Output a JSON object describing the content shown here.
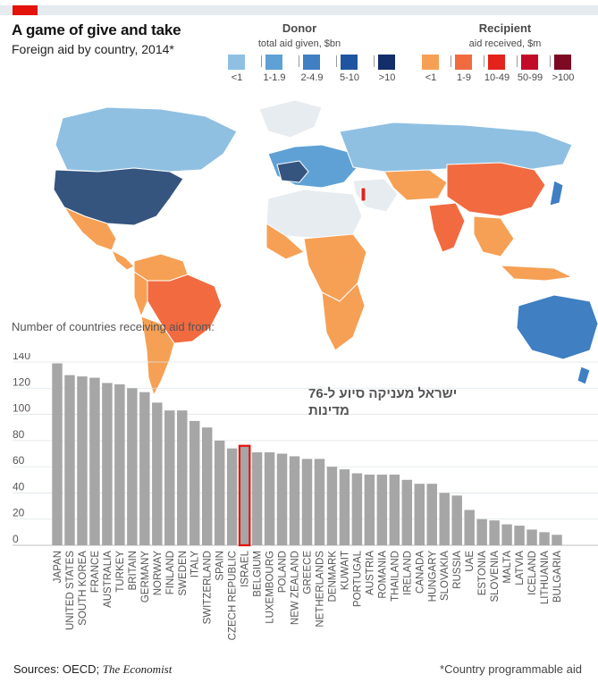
{
  "header": {
    "title": "A game of give and take",
    "subtitle": "Foreign aid by country, 2014*"
  },
  "legend": {
    "donor": {
      "title": "Donor",
      "subtitle": "total aid given, $bn",
      "items": [
        {
          "label": "<1",
          "color": "#8fc0e2"
        },
        {
          "label": "1-1.9",
          "color": "#5fa1d4"
        },
        {
          "label": "2-4.9",
          "color": "#3f7fc2"
        },
        {
          "label": "5-10",
          "color": "#1f55a0"
        },
        {
          "label": ">10",
          "color": "#132e68"
        }
      ]
    },
    "recipient": {
      "title": "Recipient",
      "subtitle": "aid received, $m",
      "items": [
        {
          "label": "<1",
          "color": "#f6a055"
        },
        {
          "label": "1-9",
          "color": "#f26a40"
        },
        {
          "label": "10-49",
          "color": "#e3231c"
        },
        {
          "label": "50-99",
          "color": "#c30b29"
        },
        {
          "label": ">100",
          "color": "#7d0a22"
        }
      ]
    }
  },
  "map_colors": {
    "ocean": "#ffffff",
    "land_default": "#e7ecf1",
    "north_america_top": "#8fc0e2",
    "usa": "#35557f",
    "russia": "#8fc0e2",
    "europe": "#5fa1d4",
    "china": "#f26a40",
    "india": "#f26a40",
    "brazil": "#f26a40",
    "recipient_light": "#f6a055",
    "australia": "#3f7fc2",
    "japan": "#3f7fc2",
    "israel_marker": "#e3231c",
    "border": "#ffffff"
  },
  "chart_data": {
    "type": "bar",
    "ylabel": "Number of countries receiving aid from:",
    "ylim": [
      0,
      140
    ],
    "yticks": [
      0,
      20,
      40,
      60,
      80,
      100,
      120,
      140
    ],
    "grid": true,
    "bar_color": "#a6a6a6",
    "highlight_color": "#e3120b",
    "highlight": "ISRAEL",
    "categories": [
      "JAPAN",
      "UNITED STATES",
      "SOUTH KOREA",
      "FRANCE",
      "AUSTRALIA",
      "TURKEY",
      "BRITAIN",
      "GERMANY",
      "NORWAY",
      "FINLAND",
      "SWEDEN",
      "ITALY",
      "SWITZERLAND",
      "SPAIN",
      "CZECH REPUBLIC",
      "ISRAEL",
      "BELGIUM",
      "LUXEMBOURG",
      "POLAND",
      "NEW ZEALAND",
      "GREECE",
      "NETHERLANDS",
      "DENMARK",
      "KUWAIT",
      "PORTUGAL",
      "AUSTRIA",
      "ROMANIA",
      "THAILAND",
      "IRELAND",
      "CANADA",
      "HUNGARY",
      "SLOVAKIA",
      "RUSSIA",
      "UAE",
      "ESTONIA",
      "SLOVENIA",
      "MALTA",
      "LATVIA",
      "ICELAND",
      "LITHUANIA",
      "BULGARIA"
    ],
    "values": [
      139,
      130,
      129,
      128,
      124,
      123,
      120,
      117,
      109,
      103,
      103,
      95,
      90,
      80,
      74,
      76,
      71,
      71,
      70,
      68,
      66,
      66,
      60,
      58,
      55,
      54,
      54,
      54,
      50,
      47,
      47,
      40,
      38,
      27,
      20,
      19,
      16,
      15,
      12,
      10,
      8
    ]
  },
  "annotation": {
    "line1": "ישראל מעניקה סיוע ל-76",
    "line2": "מדינות"
  },
  "footer": {
    "source_prefix": "Sources: OECD;",
    "source_italic": "The Economist",
    "footnote": "*Country programmable aid"
  }
}
